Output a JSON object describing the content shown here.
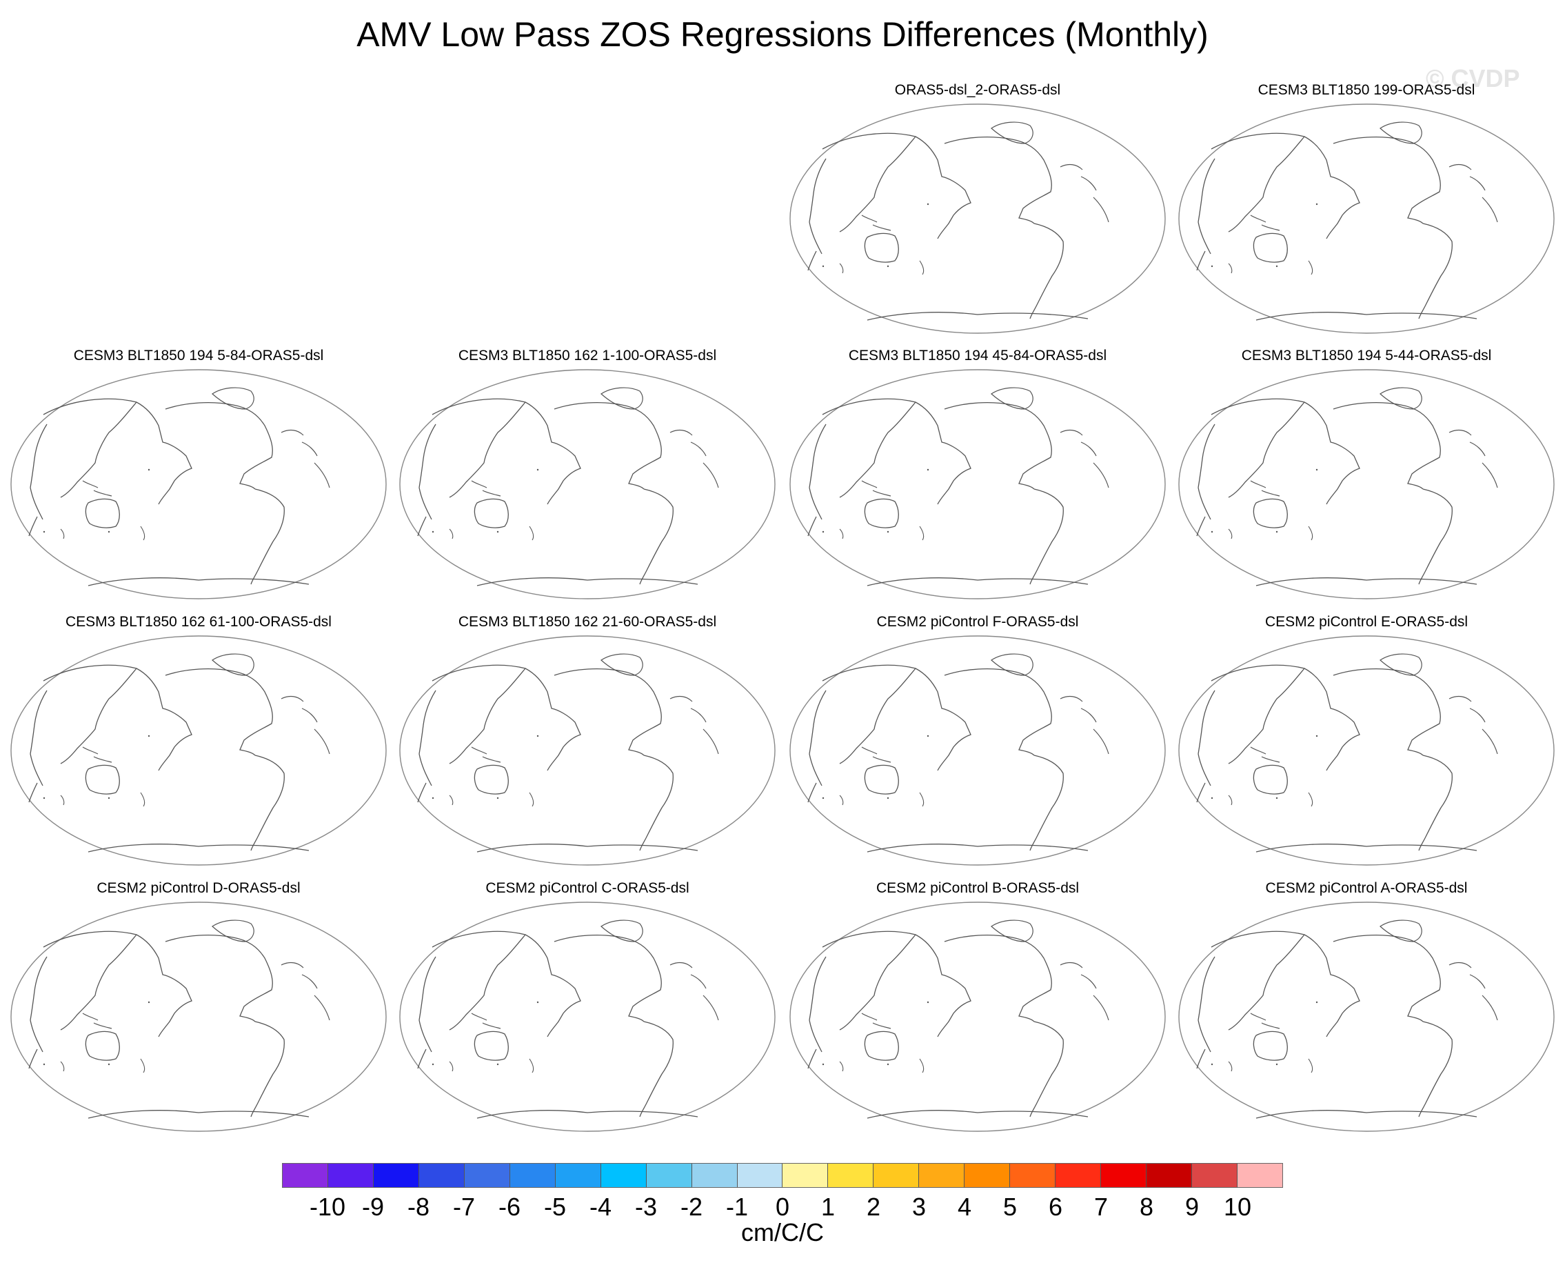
{
  "figure": {
    "title": "AMV Low Pass ZOS Regressions Differences (Monthly)",
    "watermark": "© CVDP"
  },
  "panels": [
    {
      "title": "ORAS5-dsl_2-ORAS5-dsl"
    },
    {
      "title": "CESM3 BLT1850 199-ORAS5-dsl"
    },
    {
      "title": "CESM3 BLT1850 194 5-84-ORAS5-dsl"
    },
    {
      "title": "CESM3 BLT1850 162 1-100-ORAS5-dsl"
    },
    {
      "title": "CESM3 BLT1850 194 45-84-ORAS5-dsl"
    },
    {
      "title": "CESM3 BLT1850 194 5-44-ORAS5-dsl"
    },
    {
      "title": "CESM3 BLT1850 162 61-100-ORAS5-dsl"
    },
    {
      "title": "CESM3 BLT1850 162 21-60-ORAS5-dsl"
    },
    {
      "title": "CESM2 piControl F-ORAS5-dsl"
    },
    {
      "title": "CESM2 piControl E-ORAS5-dsl"
    },
    {
      "title": "CESM2 piControl D-ORAS5-dsl"
    },
    {
      "title": "CESM2 piControl C-ORAS5-dsl"
    },
    {
      "title": "CESM2 piControl B-ORAS5-dsl"
    },
    {
      "title": "CESM2 piControl A-ORAS5-dsl"
    }
  ],
  "colorbar": {
    "units": "cm/C/C",
    "tick_labels": [
      "-10",
      "-9",
      "-8",
      "-7",
      "-6",
      "-5",
      "-4",
      "-3",
      "-2",
      "-1",
      "0",
      "1",
      "2",
      "3",
      "4",
      "5",
      "6",
      "7",
      "8",
      "9",
      "10"
    ],
    "colors": [
      "#8a2be2",
      "#5a1ef0",
      "#1414f5",
      "#2d4be6",
      "#3c6ee6",
      "#2887f0",
      "#1ea0f5",
      "#00c0ff",
      "#5ac8f0",
      "#96d2f0",
      "#bee1f5",
      "#fff5a0",
      "#ffe13c",
      "#ffc81e",
      "#ffaa14",
      "#ff8c00",
      "#ff6414",
      "#ff2d14",
      "#f00000",
      "#c80000",
      "#dc4646",
      "#ffb4b4"
    ]
  }
}
